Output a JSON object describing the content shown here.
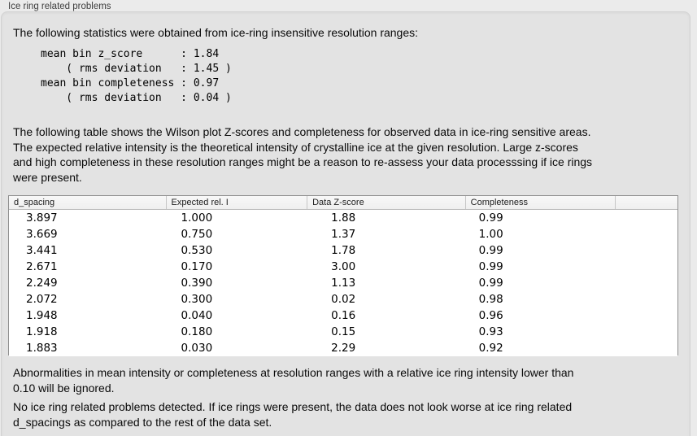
{
  "panel": {
    "title": "Ice ring related problems"
  },
  "texts": {
    "intro": "The following statistics were obtained from ice-ring insensitive resolution ranges:",
    "stats_block": "mean bin z_score      : 1.84\n    ( rms deviation   : 1.45 )\nmean bin completeness : 0.97\n    ( rms deviation   : 0.04 )",
    "table_description": "The following table shows the Wilson plot Z-scores and completeness for observed data in ice-ring sensitive areas.\nThe expected relative intensity is the theoretical intensity of crystalline ice at the given resolution. Large z-scores\nand high completeness in these resolution ranges might be a reason to re-assess your data processsing if ice rings\nwere present.",
    "note": "Abnormalities in mean intensity or completeness at resolution ranges with a relative ice ring intensity lower than\n0.10 will be ignored.",
    "conclusion": "No ice ring related problems detected. If ice rings were present, the data does not look worse at ice ring related\nd_spacings as compared to the rest of the data set."
  },
  "table": {
    "headers": [
      "d_spacing",
      "Expected rel. I",
      "Data Z-score",
      "Completeness",
      ""
    ],
    "rows": [
      [
        "3.897",
        "1.000",
        "1.88",
        "0.99"
      ],
      [
        "3.669",
        "0.750",
        "1.37",
        "1.00"
      ],
      [
        "3.441",
        "0.530",
        "1.78",
        "0.99"
      ],
      [
        "2.671",
        "0.170",
        "3.00",
        "0.99"
      ],
      [
        "2.249",
        "0.390",
        "1.13",
        "0.99"
      ],
      [
        "2.072",
        "0.300",
        "0.02",
        "0.98"
      ],
      [
        "1.948",
        "0.040",
        "0.16",
        "0.96"
      ],
      [
        "1.918",
        "0.180",
        "0.15",
        "0.93"
      ],
      [
        "1.883",
        "0.030",
        "2.29",
        "0.92"
      ]
    ]
  }
}
